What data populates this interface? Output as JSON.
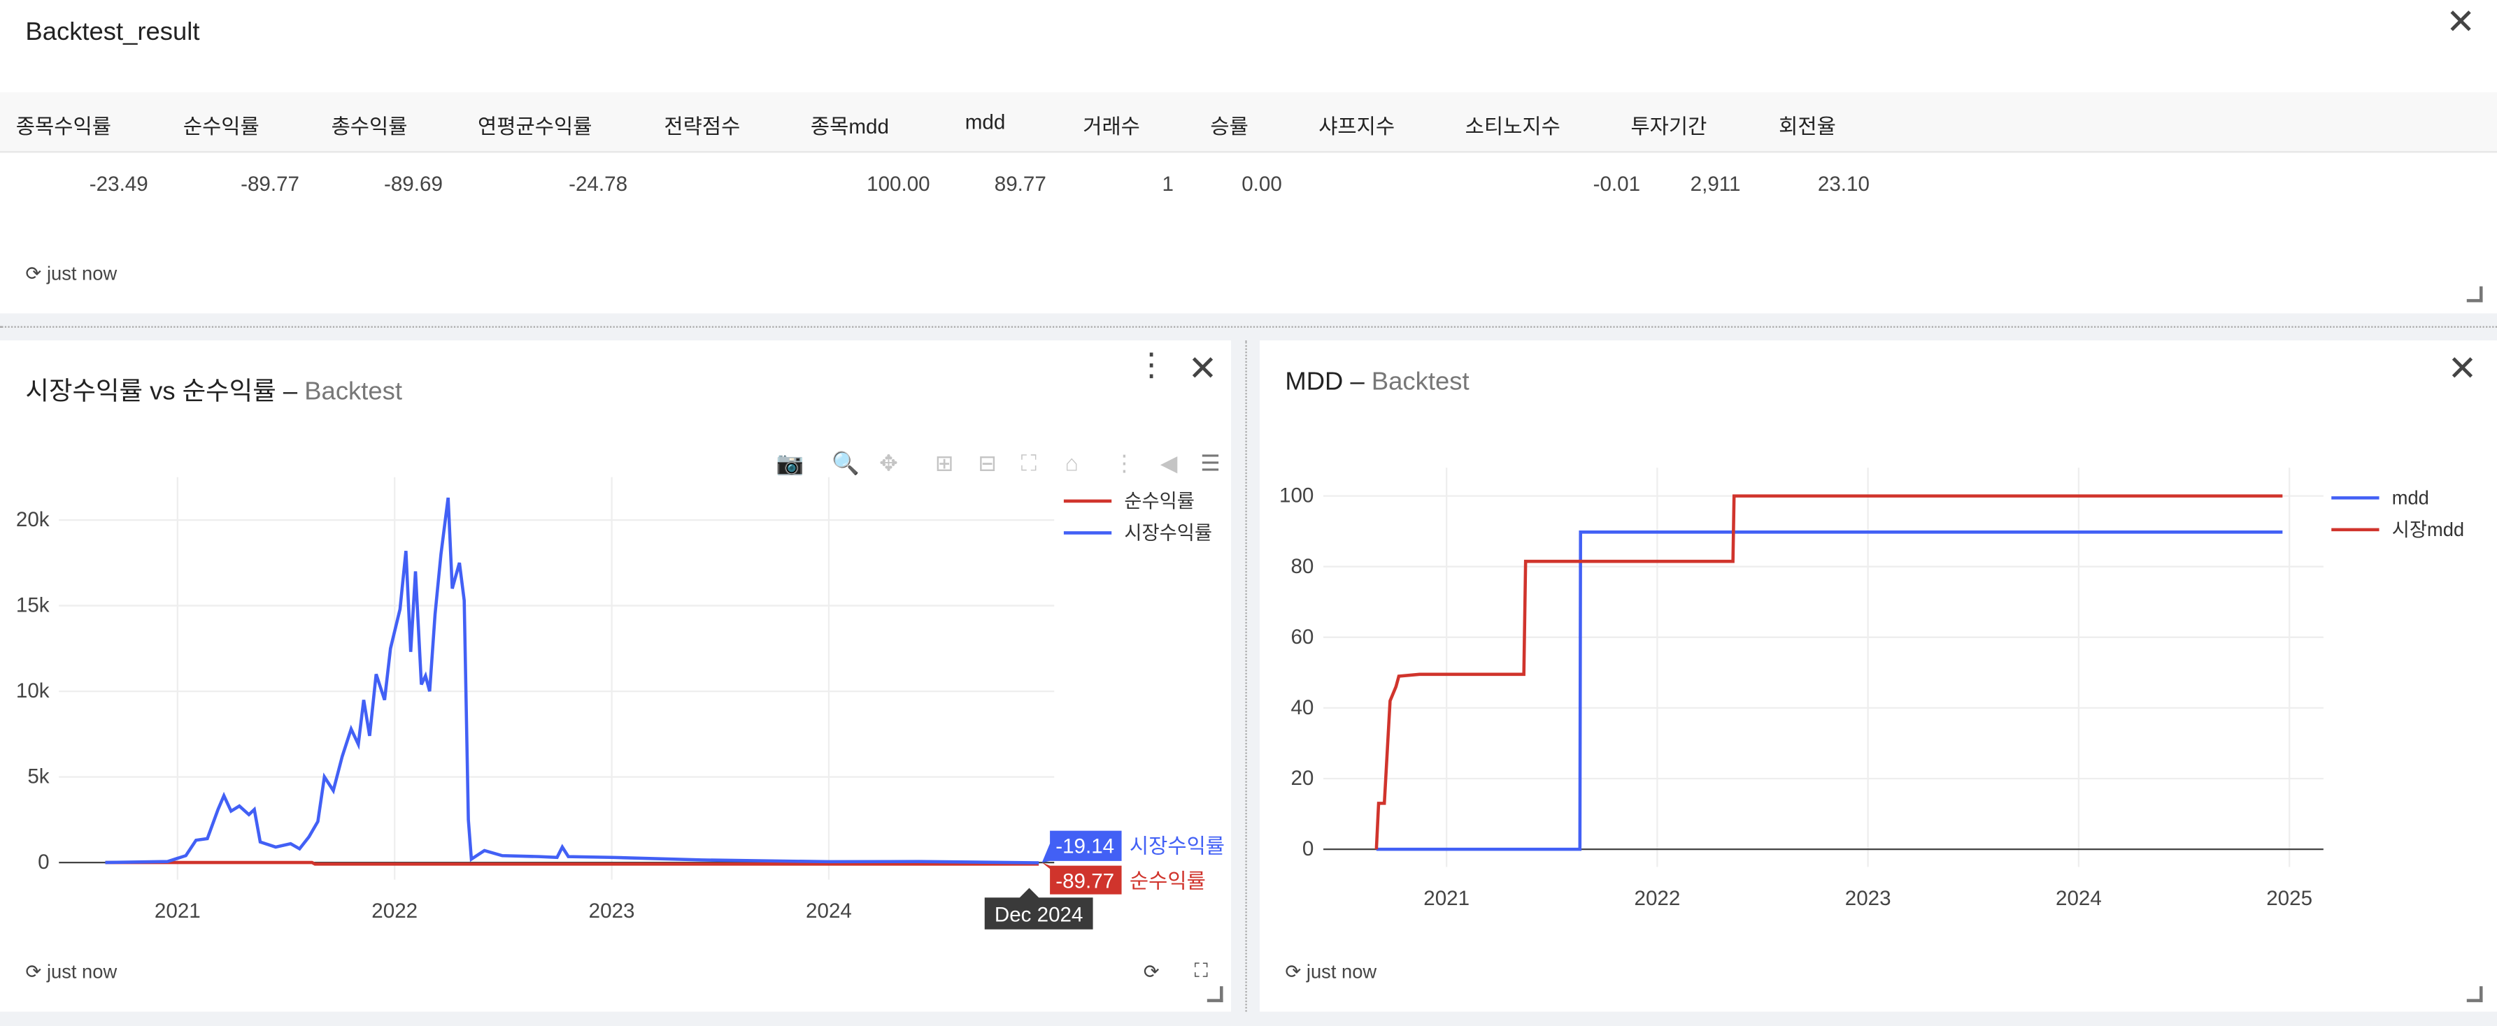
{
  "top_panel": {
    "title": "Backtest_result",
    "updated": "just now",
    "columns": [
      "종목수익률",
      "순수익률",
      "총수익률",
      "연평균수익률",
      "전략점수",
      "종목mdd",
      "mdd",
      "거래수",
      "승률",
      "샤프지수",
      "소티노지수",
      "투자기간",
      "회전율"
    ],
    "row": [
      "-23.49",
      "-89.77",
      "-89.69",
      "-24.78",
      "",
      "100.00",
      "89.77",
      "1",
      "0.00",
      "",
      "-0.01",
      "2,911",
      "23.10"
    ]
  },
  "left_panel": {
    "title": "시장수익률 vs 순수익률",
    "title_sep": " – ",
    "subtitle": "Backtest",
    "updated": "just now",
    "toolbar": [
      "camera-icon",
      "zoom-icon",
      "pan-icon",
      "zoom-in-icon",
      "zoom-out-icon",
      "autoscale-icon",
      "home-icon",
      "spike-lines-icon",
      "hover-closest-icon",
      "hover-compare-icon"
    ],
    "hover": {
      "date": "Dec 2024",
      "market_value": "-19.14",
      "market_label": "시장수익률",
      "net_value": "-89.77",
      "net_label": "순수익률"
    }
  },
  "right_panel": {
    "title": "MDD",
    "title_sep": " – ",
    "subtitle": "Backtest",
    "updated": "just now"
  },
  "colors": {
    "red": "#d0342c",
    "blue": "#4260f5"
  },
  "chart_data": [
    {
      "type": "line",
      "yticks": [
        "0",
        "5k",
        "10k",
        "15k",
        "20k"
      ],
      "ylim": [
        -1000,
        22500
      ],
      "xticks": [
        "2021",
        "2022",
        "2023",
        "2024"
      ],
      "xlim": [
        "2020-06-15",
        "2025-01-15"
      ],
      "grid": true,
      "legend": "top-right",
      "series": [
        {
          "name": "순수익률",
          "color": "#d0342c",
          "points": [
            [
              "2020-09-01",
              0
            ],
            [
              "2021-08-15",
              0
            ],
            [
              "2021-08-20",
              -89
            ],
            [
              "2024-12-20",
              -89.77
            ]
          ]
        },
        {
          "name": "시장수익률",
          "color": "#4260f5",
          "points": [
            [
              "2020-09-01",
              0
            ],
            [
              "2020-12-15",
              60
            ],
            [
              "2021-01-15",
              400
            ],
            [
              "2021-02-01",
              1300
            ],
            [
              "2021-02-20",
              1400
            ],
            [
              "2021-03-10",
              3100
            ],
            [
              "2021-03-20",
              3900
            ],
            [
              "2021-04-01",
              3000
            ],
            [
              "2021-04-15",
              3300
            ],
            [
              "2021-05-01",
              2800
            ],
            [
              "2021-05-10",
              3100
            ],
            [
              "2021-05-20",
              1200
            ],
            [
              "2021-06-15",
              900
            ],
            [
              "2021-07-10",
              1100
            ],
            [
              "2021-07-25",
              800
            ],
            [
              "2021-08-10",
              1500
            ],
            [
              "2021-08-25",
              2400
            ],
            [
              "2021-09-05",
              5000
            ],
            [
              "2021-09-20",
              4200
            ],
            [
              "2021-10-05",
              6200
            ],
            [
              "2021-10-20",
              7800
            ],
            [
              "2021-11-01",
              6900
            ],
            [
              "2021-11-10",
              9500
            ],
            [
              "2021-11-20",
              7400
            ],
            [
              "2021-12-01",
              11000
            ],
            [
              "2021-12-15",
              9500
            ],
            [
              "2021-12-25",
              12500
            ],
            [
              "2022-01-10",
              14800
            ],
            [
              "2022-01-20",
              18200
            ],
            [
              "2022-01-28",
              12300
            ],
            [
              "2022-02-05",
              17000
            ],
            [
              "2022-02-15",
              10400
            ],
            [
              "2022-02-22",
              10900
            ],
            [
              "2022-03-01",
              10000
            ],
            [
              "2022-03-10",
              14500
            ],
            [
              "2022-03-20",
              18000
            ],
            [
              "2022-04-01",
              21300
            ],
            [
              "2022-04-08",
              16000
            ],
            [
              "2022-04-20",
              17500
            ],
            [
              "2022-04-28",
              15300
            ],
            [
              "2022-05-05",
              2500
            ],
            [
              "2022-05-10",
              200
            ],
            [
              "2022-06-01",
              700
            ],
            [
              "2022-07-01",
              400
            ],
            [
              "2022-09-01",
              350
            ],
            [
              "2022-10-01",
              300
            ],
            [
              "2022-10-10",
              900
            ],
            [
              "2022-10-20",
              350
            ],
            [
              "2023-01-01",
              300
            ],
            [
              "2023-06-01",
              150
            ],
            [
              "2024-01-01",
              50
            ],
            [
              "2024-06-01",
              60
            ],
            [
              "2024-12-20",
              -19.14
            ]
          ]
        }
      ]
    },
    {
      "type": "line",
      "yticks": [
        "0",
        "20",
        "40",
        "60",
        "80",
        "100"
      ],
      "ylim": [
        -5,
        108
      ],
      "xticks": [
        "2021",
        "2022",
        "2023",
        "2024",
        "2025"
      ],
      "xlim": [
        "2020-06-01",
        "2025-03-01"
      ],
      "grid": true,
      "legend": "top-right",
      "series": [
        {
          "name": "mdd",
          "color": "#4260f5",
          "points": [
            [
              "2020-09-01",
              0
            ],
            [
              "2021-08-20",
              0
            ],
            [
              "2021-08-21",
              89.77
            ],
            [
              "2024-12-20",
              89.77
            ]
          ]
        },
        {
          "name": "시장mdd",
          "color": "#d0342c",
          "points": [
            [
              "2020-09-01",
              0
            ],
            [
              "2020-09-05",
              13
            ],
            [
              "2020-09-15",
              13
            ],
            [
              "2020-09-25",
              42
            ],
            [
              "2020-10-05",
              46
            ],
            [
              "2020-10-10",
              49
            ],
            [
              "2020-11-15",
              49.5
            ],
            [
              "2021-05-15",
              49.5
            ],
            [
              "2021-05-18",
              81.5
            ],
            [
              "2022-05-12",
              81.5
            ],
            [
              "2022-05-14",
              100
            ],
            [
              "2024-12-20",
              100
            ]
          ]
        }
      ]
    }
  ]
}
